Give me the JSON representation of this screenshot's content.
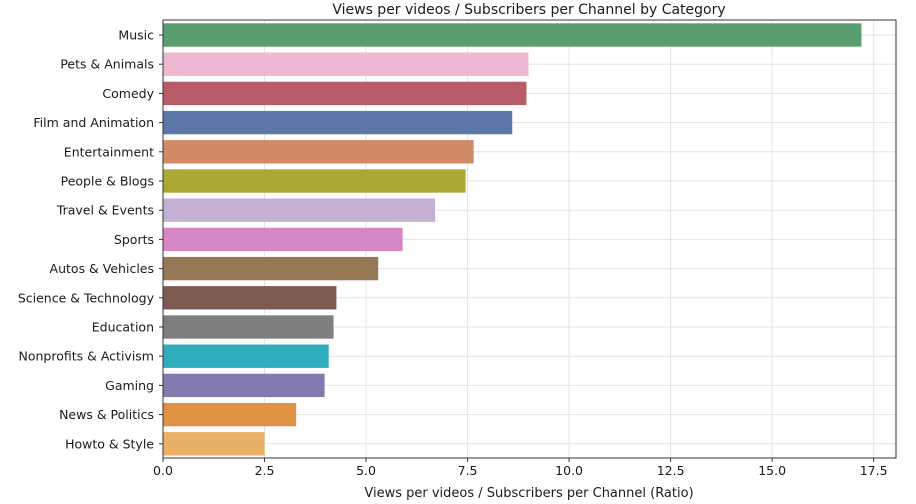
{
  "chart_data": {
    "type": "bar",
    "orientation": "horizontal",
    "title": "Views per videos / Subscribers per Channel by Category",
    "xlabel": "Views per videos / Subscribers per Channel (Ratio)",
    "ylabel": "",
    "xlim": [
      0,
      18.05
    ],
    "xticks": [
      0.0,
      2.5,
      5.0,
      7.5,
      10.0,
      12.5,
      15.0,
      17.5
    ],
    "xtick_labels": [
      "0.0",
      "2.5",
      "5.0",
      "7.5",
      "10.0",
      "12.5",
      "15.0",
      "17.5"
    ],
    "grid": true,
    "categories": [
      "Music",
      "Pets & Animals",
      "Comedy",
      "Film and Animation",
      "Entertainment",
      "People & Blogs",
      "Travel & Events",
      "Sports",
      "Autos & Vehicles",
      "Science & Technology",
      "Education",
      "Nonprofits & Activism",
      "Gaming",
      "News & Politics",
      "Howto & Style"
    ],
    "values": [
      17.2,
      9.0,
      8.95,
      8.6,
      7.65,
      7.45,
      6.7,
      5.9,
      5.3,
      4.27,
      4.2,
      4.08,
      3.98,
      3.28,
      2.5
    ],
    "colors": [
      "#5a9e6f",
      "#eeb8d2",
      "#b85b66",
      "#5b78a8",
      "#cf8b66",
      "#aaa936",
      "#c4b0d3",
      "#d487c4",
      "#967856",
      "#7c5a52",
      "#7f7f7f",
      "#2fadbd",
      "#857aae",
      "#e19143",
      "#eab166"
    ]
  }
}
